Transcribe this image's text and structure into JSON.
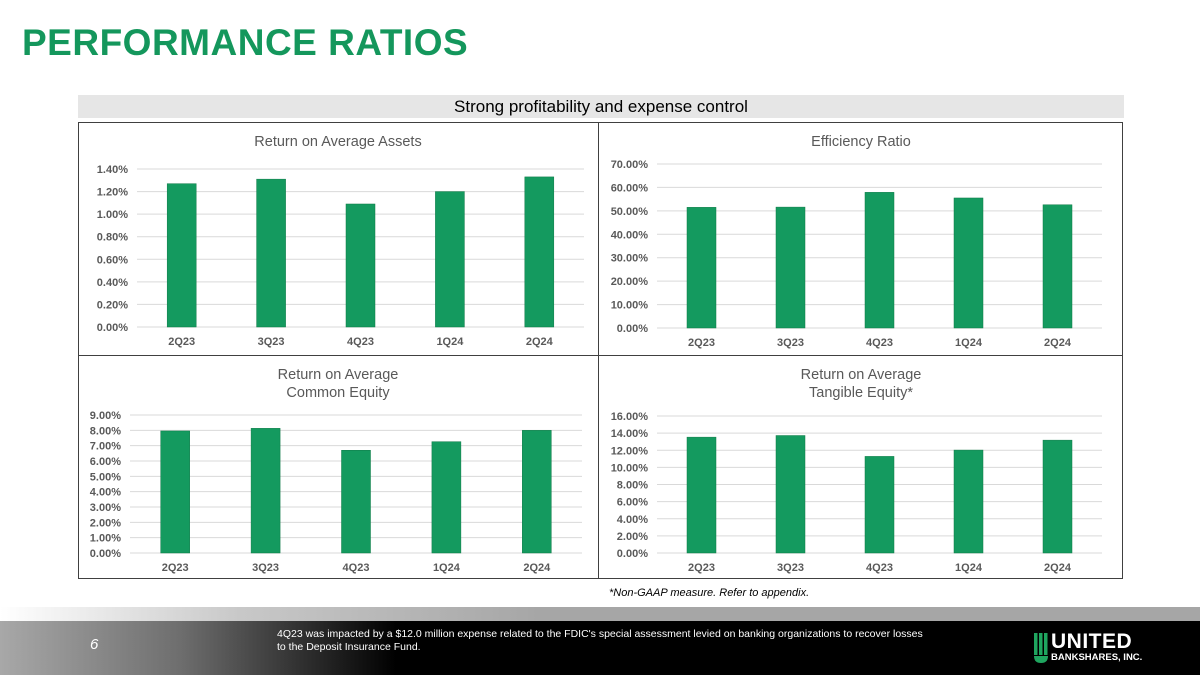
{
  "page": {
    "title": "PERFORMANCE RATIOS",
    "banner": "Strong profitability and expense control",
    "footnote": "*Non-GAAP measure.  Refer to appendix.",
    "page_number": "6",
    "note": "4Q23 was impacted by a $12.0 million expense related to the FDIC's special assessment levied on banking organizations to recover losses to the Deposit Insurance Fund.",
    "logo": {
      "name": "UNITED",
      "sub": "BANKSHARES, INC."
    }
  },
  "colors": {
    "title": "#14975c",
    "bar": "#149a5f",
    "grid": "#d9d9d9",
    "axis_text": "#595959"
  },
  "chart_data": [
    {
      "type": "bar",
      "title": "Return on Average Assets",
      "categories": [
        "2Q23",
        "3Q23",
        "4Q23",
        "1Q24",
        "2Q24"
      ],
      "values": [
        1.27,
        1.31,
        1.09,
        1.2,
        1.33
      ],
      "unit": "%",
      "ylim": [
        0,
        1.4
      ],
      "yticks": [
        "0.00%",
        "0.20%",
        "0.40%",
        "0.60%",
        "0.80%",
        "1.00%",
        "1.20%",
        "1.40%"
      ],
      "grid": true
    },
    {
      "type": "bar",
      "title": "Efficiency Ratio",
      "categories": [
        "2Q23",
        "3Q23",
        "4Q23",
        "1Q24",
        "2Q24"
      ],
      "values": [
        51.5,
        51.6,
        57.9,
        55.5,
        52.6
      ],
      "unit": "%",
      "ylim": [
        0,
        70
      ],
      "yticks": [
        "0.00%",
        "10.00%",
        "20.00%",
        "30.00%",
        "40.00%",
        "50.00%",
        "60.00%",
        "70.00%"
      ],
      "grid": true
    },
    {
      "type": "bar",
      "title": "Return on Average\nCommon Equity",
      "categories": [
        "2Q23",
        "3Q23",
        "4Q23",
        "1Q24",
        "2Q24"
      ],
      "values": [
        7.96,
        8.13,
        6.7,
        7.26,
        8.0
      ],
      "unit": "%",
      "ylim": [
        0,
        9
      ],
      "yticks": [
        "0.00%",
        "1.00%",
        "2.00%",
        "3.00%",
        "4.00%",
        "5.00%",
        "6.00%",
        "7.00%",
        "8.00%",
        "9.00%"
      ],
      "grid": true
    },
    {
      "type": "bar",
      "title": "Return on Average\nTangible Equity*",
      "categories": [
        "2Q23",
        "3Q23",
        "4Q23",
        "1Q24",
        "2Q24"
      ],
      "values": [
        13.53,
        13.72,
        11.28,
        12.02,
        13.18
      ],
      "unit": "%",
      "ylim": [
        0,
        16
      ],
      "yticks": [
        "0.00%",
        "2.00%",
        "4.00%",
        "6.00%",
        "8.00%",
        "10.00%",
        "12.00%",
        "14.00%",
        "16.00%"
      ],
      "grid": true
    }
  ]
}
